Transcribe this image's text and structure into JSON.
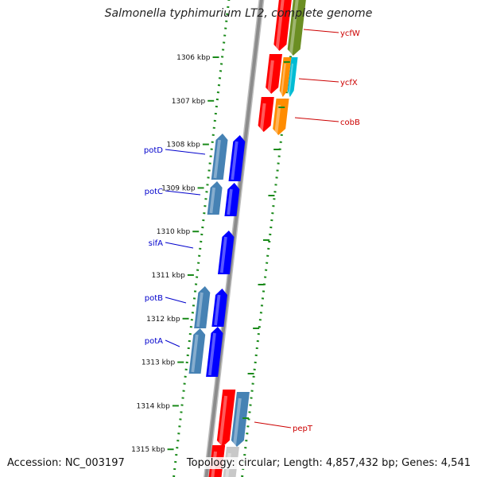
{
  "title": "Salmonella typhimurium LT2, complete genome",
  "footer": {
    "accession": "Accession: NC_003197",
    "summary": "Topology: circular; Length: 4,857,432 bp; Genes: 4,541"
  },
  "ruler": [
    {
      "label": "1306 kbp"
    },
    {
      "label": "1307 kbp"
    },
    {
      "label": "1308 kbp"
    },
    {
      "label": "1309 kbp"
    },
    {
      "label": "1310 kbp"
    },
    {
      "label": "1311 kbp"
    },
    {
      "label": "1312 kbp"
    },
    {
      "label": "1313 kbp"
    },
    {
      "label": "1314 kbp"
    },
    {
      "label": "1315 kbp"
    }
  ],
  "genes_left": [
    {
      "label": "potD",
      "color": "#0000cc"
    },
    {
      "label": "potC",
      "color": "#0000cc"
    },
    {
      "label": "sifA",
      "color": "#0000cc"
    },
    {
      "label": "potB",
      "color": "#0000cc"
    },
    {
      "label": "potA",
      "color": "#0000cc"
    }
  ],
  "genes_right": [
    {
      "label": "ycfW",
      "color": "#cc0000"
    },
    {
      "label": "ycfX",
      "color": "#cc0000"
    },
    {
      "label": "cobB",
      "color": "#cc0000"
    },
    {
      "label": "pepT",
      "color": "#cc0000"
    }
  ],
  "colors": {
    "backbone": "#8c8c8c",
    "dotted_track": "#1a8a1a",
    "forward_gene": "#0000ff",
    "forward_gene_alt": "#4682b4",
    "reverse_gene": "#ff0000",
    "olive_gene": "#6b8e23",
    "cyan_gene": "#00bcd4",
    "orange_gene": "#ff8c00"
  }
}
